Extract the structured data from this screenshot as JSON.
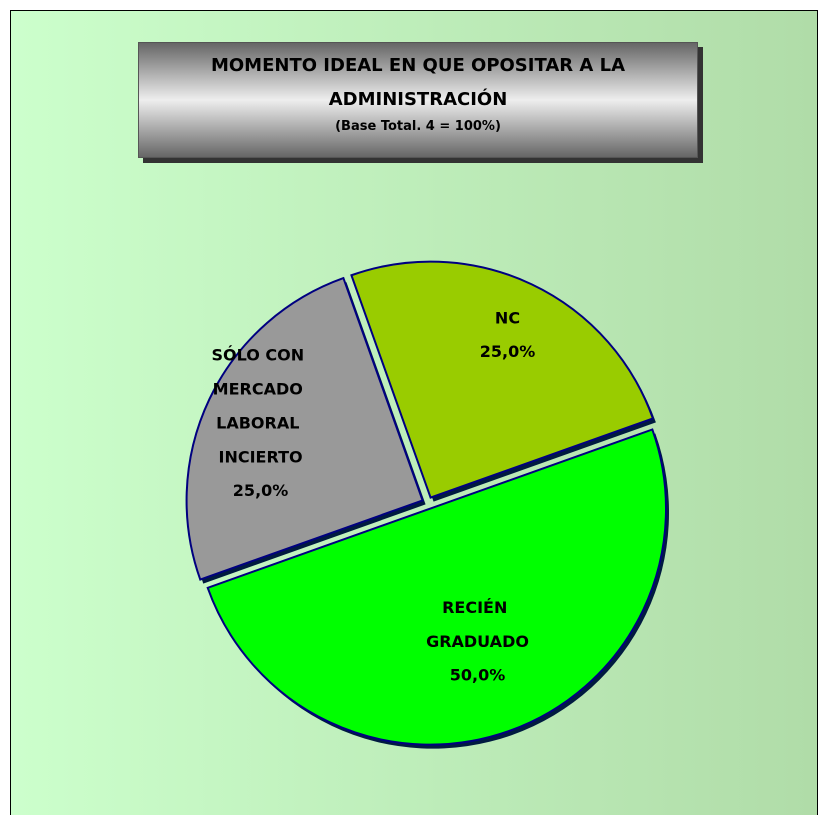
{
  "chart_data": {
    "type": "pie",
    "title": "MOMENTO IDEAL EN QUE OPOSITAR A LA ADMINISTRACIÓN",
    "subtitle": "(Base Total. 4 = 100%)",
    "categories": [
      "RECIÉN GRADUADO",
      "SÓLO CON MERCADO LABORAL INCIERTO",
      "NC"
    ],
    "values": [
      50,
      25,
      25
    ],
    "value_labels": [
      "50,0%",
      "25,0%",
      "25,0%"
    ],
    "colors": [
      "#00ff00",
      "#999999",
      "#99cc00"
    ]
  }
}
